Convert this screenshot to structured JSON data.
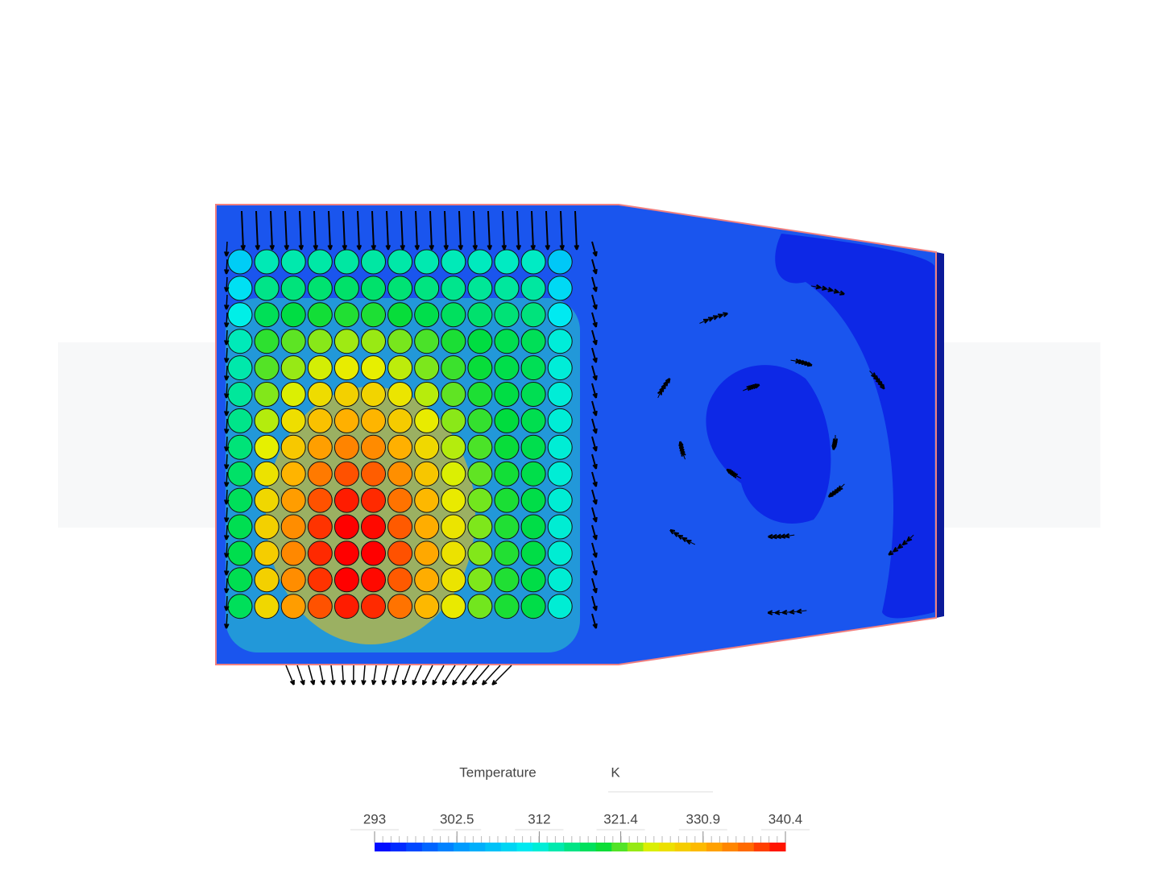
{
  "legend": {
    "title": "Temperature",
    "unit": "K",
    "ticks": [
      293,
      302.5,
      312,
      321.4,
      330.9,
      340.4
    ]
  }
}
